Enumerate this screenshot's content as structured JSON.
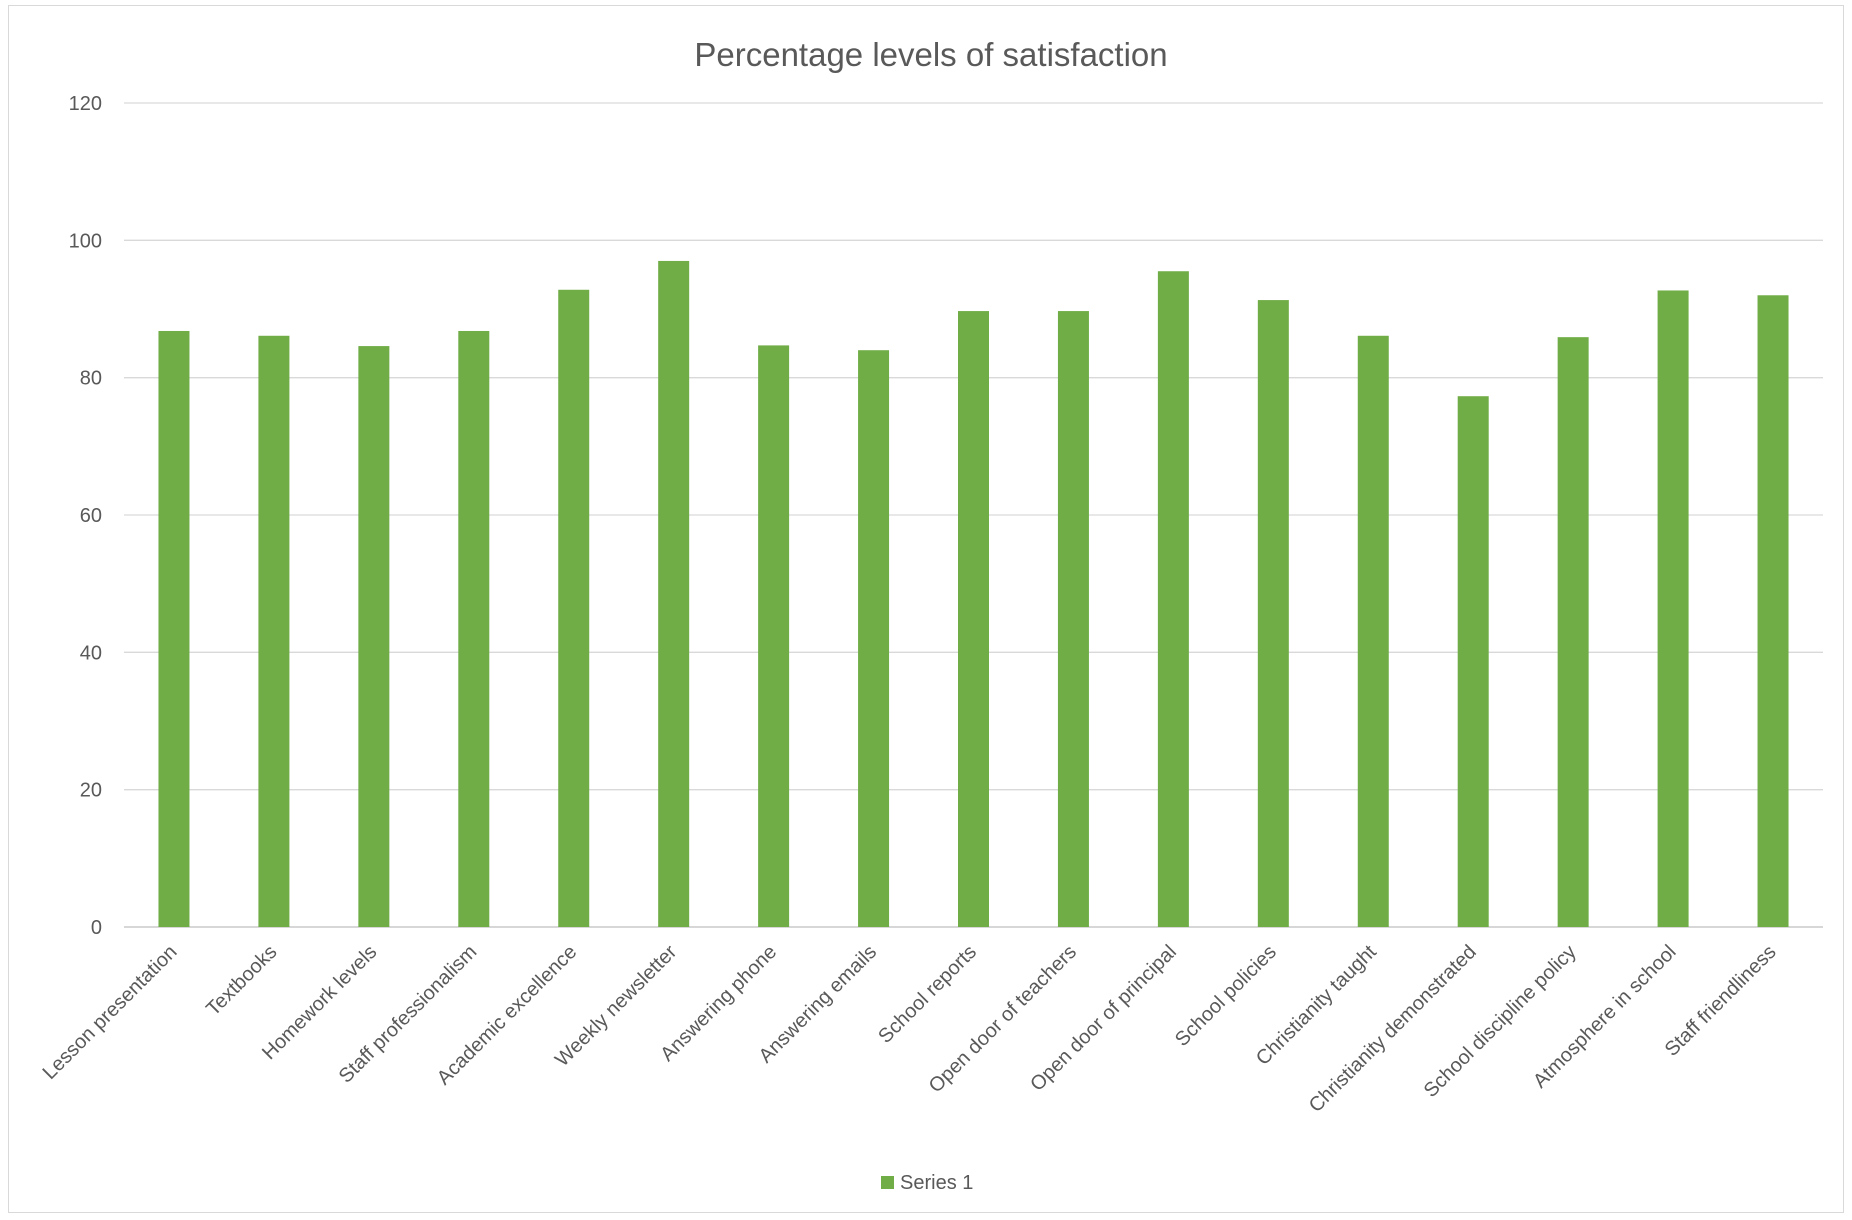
{
  "chart_data": {
    "type": "bar",
    "title": "Percentage levels of satisfaction",
    "xlabel": "",
    "ylabel": "",
    "ylim": [
      0,
      120
    ],
    "yticks": [
      0,
      20,
      40,
      60,
      80,
      100,
      120
    ],
    "grid": true,
    "legend_position": "bottom",
    "categories": [
      "Lesson presentation",
      "Textbooks",
      "Homework levels",
      "Staff professionalism",
      "Academic excellence",
      "Weekly newsletter",
      "Answering phone",
      "Answering emails",
      "School reports",
      "Open door of teachers",
      "Open door of principal",
      "School policies",
      "Christianity taught",
      "Christianity demonstrated",
      "School discipline policy",
      "Atmosphere in school",
      "Staff friendliness"
    ],
    "series": [
      {
        "name": "Series 1",
        "color": "#70ad47",
        "values": [
          86.8,
          86.1,
          84.6,
          86.8,
          92.8,
          97.0,
          84.7,
          84.0,
          89.7,
          89.7,
          95.5,
          91.3,
          86.1,
          77.3,
          85.9,
          92.7,
          92.0
        ]
      }
    ]
  }
}
